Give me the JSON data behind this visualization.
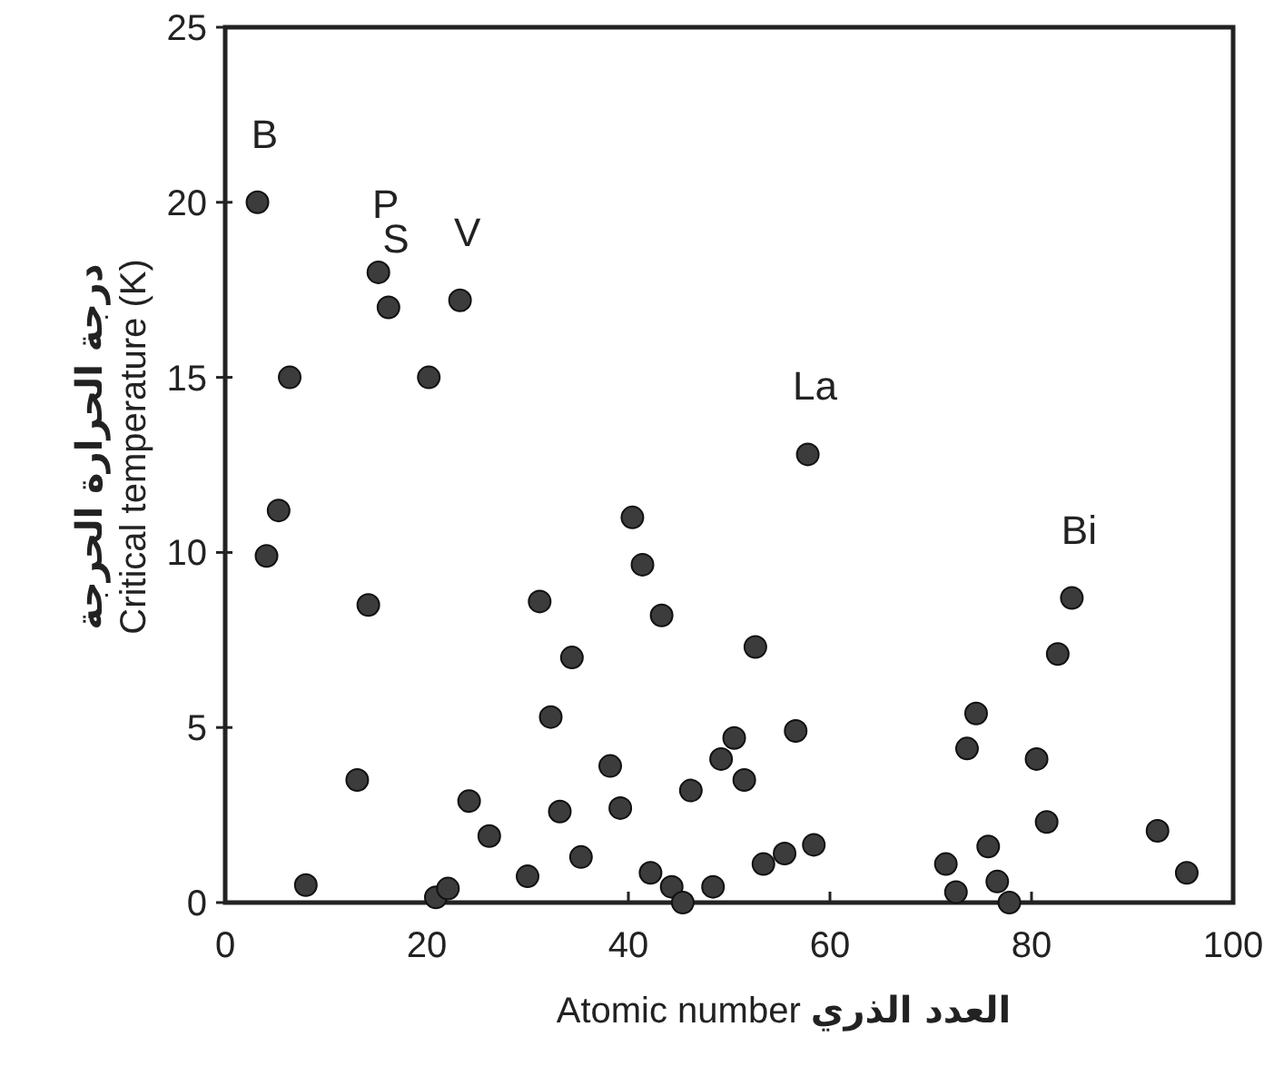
{
  "chart_data": {
    "type": "scatter",
    "xlabel": "Atomic number العدد الذري",
    "ylabel": "درجة الحرارة الحرجة\nCritical temperature (K)",
    "xlim": [
      0,
      100
    ],
    "xticks": [
      0,
      20,
      40,
      60,
      80,
      100
    ],
    "ylim": [
      0,
      25
    ],
    "yticks": [
      0,
      5,
      10,
      15,
      20,
      25
    ],
    "grid": false,
    "marker": "circle",
    "series": [
      {
        "color": "#3c3c3c",
        "x": [
          3.2,
          6.4,
          15.2,
          16.2,
          23.3,
          20.2,
          4.1,
          5.3,
          14.2,
          13.1,
          8.0,
          20.9,
          22.1,
          24.2,
          26.2,
          30.0,
          31.2,
          32.3,
          34.4,
          33.2,
          35.3,
          38.2,
          39.2,
          40.4,
          41.4,
          43.3,
          42.2,
          44.3,
          45.4,
          46.2,
          48.4,
          49.2,
          57.8,
          52.6,
          50.5,
          51.5,
          56.6,
          53.4,
          55.5,
          58.4,
          74.5,
          73.6,
          80.5,
          81.5,
          82.6,
          84.0,
          71.5,
          72.5,
          75.7,
          76.6,
          77.8,
          92.5,
          95.4
        ],
        "values": [
          20.0,
          15.0,
          18.0,
          17.0,
          17.2,
          15.0,
          9.9,
          11.2,
          8.5,
          3.5,
          0.5,
          0.15,
          0.4,
          2.9,
          1.9,
          0.75,
          8.6,
          5.3,
          7.0,
          2.6,
          1.3,
          3.9,
          2.7,
          11.0,
          9.65,
          8.2,
          0.85,
          0.45,
          0.0,
          3.2,
          0.45,
          4.1,
          12.8,
          7.3,
          4.7,
          3.5,
          4.9,
          1.1,
          1.4,
          1.65,
          5.4,
          4.4,
          4.1,
          2.3,
          7.1,
          8.7,
          1.1,
          0.3,
          1.6,
          0.6,
          0.0,
          2.05,
          0.85
        ]
      }
    ],
    "annotations": [
      {
        "text": "B",
        "x": 3.2,
        "y": 20.0
      },
      {
        "text": "P",
        "x": 15.2,
        "y": 18.0
      },
      {
        "text": "S",
        "x": 16.2,
        "y": 17.0
      },
      {
        "text": "V",
        "x": 23.3,
        "y": 17.2
      },
      {
        "text": "La",
        "x": 57.8,
        "y": 12.8
      },
      {
        "text": "Bi",
        "x": 84.0,
        "y": 8.7
      }
    ]
  }
}
